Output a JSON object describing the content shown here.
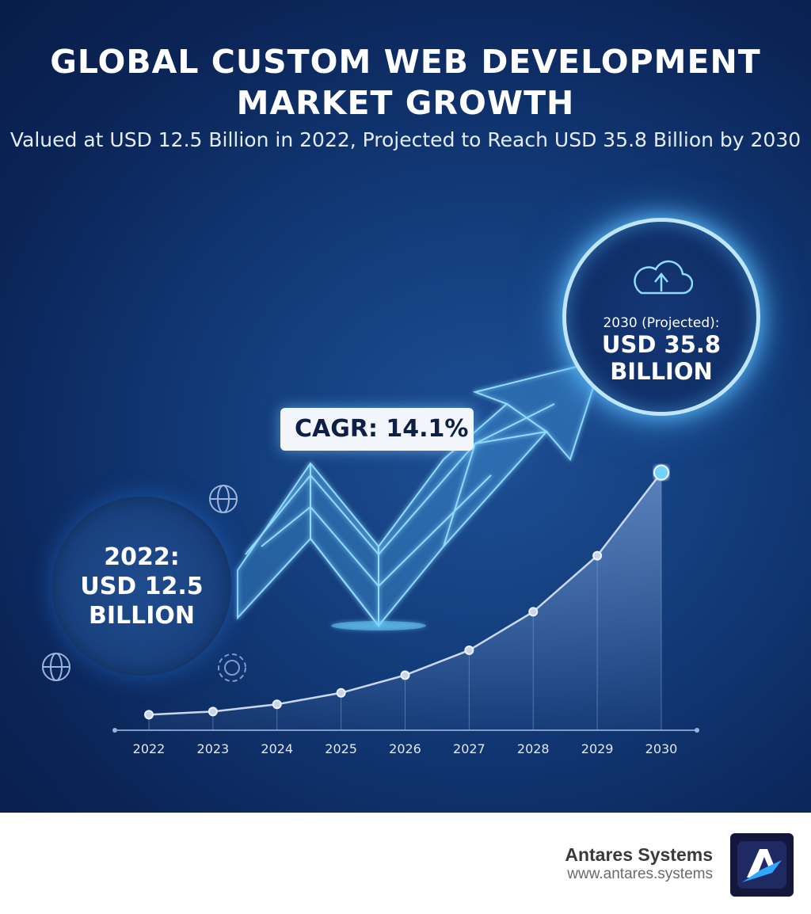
{
  "header": {
    "title": "GLOBAL CUSTOM WEB DEVELOPMENT MARKET GROWTH",
    "subtitle": "Valued at USD 12.5 Billion in 2022, Projected to Reach USD 35.8 Billion by 2030"
  },
  "callouts": {
    "start": {
      "line1": "2022:",
      "line2": "USD 12.5",
      "line3": "BILLION"
    },
    "end": {
      "label": "2030 (Projected):",
      "line1": "USD 35.8",
      "line2": "BILLION",
      "icon": "cloud-upload-icon"
    },
    "cagr": "CAGR: 14.1%"
  },
  "chart_data": {
    "type": "area",
    "title": "",
    "xlabel": "",
    "ylabel": "",
    "categories": [
      "2022",
      "2023",
      "2024",
      "2025",
      "2026",
      "2027",
      "2028",
      "2029",
      "2030"
    ],
    "values": [
      12.5,
      12.8,
      13.5,
      14.6,
      16.3,
      18.7,
      22.4,
      27.8,
      35.8
    ],
    "ylim": [
      11,
      36
    ],
    "grid": false,
    "colors": {
      "line": "#c9d8f0",
      "fill": "#7fa6dc",
      "accent": "#6fd3ff"
    }
  },
  "footer": {
    "brand": "Antares Systems",
    "url": "www.antares.systems"
  },
  "colors": {
    "background": "#123a78",
    "glow": "#6fd3ff",
    "footer": "#ffffff"
  }
}
